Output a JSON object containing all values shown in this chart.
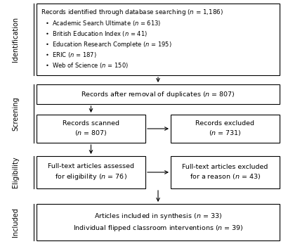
{
  "bg_color": "#ffffff",
  "border_color": "#000000",
  "text_color": "#000000",
  "arrow_color": "#000000",
  "stage_labels": [
    "Identification",
    "Screening",
    "Eligibility",
    "Included"
  ],
  "fontsize": 6.8,
  "label_fontsize": 7.0,
  "fig_width": 4.0,
  "fig_height": 3.47,
  "dpi": 100
}
